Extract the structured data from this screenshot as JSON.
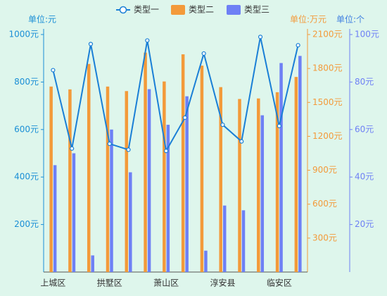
{
  "chart_data": {
    "type": "bar",
    "categories": [
      "上城区",
      null,
      null,
      "拱墅区",
      null,
      null,
      "萧山区",
      null,
      null,
      "淳安县",
      null,
      null,
      "临安区",
      null
    ],
    "series": [
      {
        "name": "类型一",
        "type": "line",
        "color": "#1a7fd6",
        "axis": "y",
        "values": [
          850,
          520,
          960,
          540,
          515,
          975,
          510,
          650,
          920,
          620,
          550,
          990,
          615,
          955
        ]
      },
      {
        "name": "类型二",
        "type": "bar",
        "color": "#f39a3a",
        "axis": "y2",
        "values": [
          1640,
          1615,
          1840,
          1640,
          1600,
          1940,
          1685,
          1925,
          1825,
          1635,
          1530,
          1535,
          1590,
          1725
        ]
      },
      {
        "name": "类型三",
        "type": "bar",
        "color": "#6e80f5",
        "axis": "y3",
        "values": [
          45,
          50,
          7,
          60,
          42,
          77,
          62,
          74,
          9,
          28,
          26,
          66,
          88,
          91
        ]
      }
    ],
    "ylabel": "单位:元",
    "y2label": "单位:万元",
    "y3label": "单位:个",
    "ylim": [
      0,
      1000
    ],
    "yticks": [
      {
        "value": 200,
        "label": "200元"
      },
      {
        "value": 400,
        "label": "400元"
      },
      {
        "value": 600,
        "label": "600元"
      },
      {
        "value": 800,
        "label": "800元"
      },
      {
        "value": 1000,
        "label": "1000元"
      }
    ],
    "y2lim": [
      0,
      2100
    ],
    "y2ticks": [
      {
        "value": 300,
        "label": "300元"
      },
      {
        "value": 600,
        "label": "600元"
      },
      {
        "value": 900,
        "label": "900元"
      },
      {
        "value": 1200,
        "label": "1200元"
      },
      {
        "value": 1500,
        "label": "1500元"
      },
      {
        "value": 1800,
        "label": "1800元"
      },
      {
        "value": 2100,
        "label": "2100元"
      }
    ],
    "y3lim": [
      0,
      100
    ],
    "y3ticks": [
      {
        "value": 20,
        "label": "20元"
      },
      {
        "value": 40,
        "label": "40元"
      },
      {
        "value": 60,
        "label": "60元"
      },
      {
        "value": 80,
        "label": "80元"
      },
      {
        "value": 100,
        "label": "100元"
      }
    ],
    "grid": false,
    "legend": "top"
  }
}
